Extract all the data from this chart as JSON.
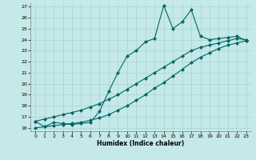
{
  "title": "",
  "xlabel": "Humidex (Indice chaleur)",
  "xlim": [
    -0.5,
    23.5
  ],
  "ylim": [
    15.7,
    27.3
  ],
  "yticks": [
    16,
    17,
    18,
    19,
    20,
    21,
    22,
    23,
    24,
    25,
    26,
    27
  ],
  "xticks": [
    0,
    1,
    2,
    3,
    4,
    5,
    6,
    7,
    8,
    9,
    10,
    11,
    12,
    13,
    14,
    15,
    16,
    17,
    18,
    19,
    20,
    21,
    22,
    23
  ],
  "bg_color": "#c5e8e8",
  "grid_color": "#a8d4d4",
  "line_color": "#006666",
  "line1_x": [
    0,
    1,
    2,
    3,
    4,
    5,
    6,
    7,
    8,
    9,
    10,
    11,
    12,
    13,
    14,
    15,
    16,
    17,
    18,
    19,
    20,
    21,
    22,
    23
  ],
  "line1_y": [
    16.6,
    16.1,
    16.5,
    16.4,
    16.3,
    16.4,
    16.5,
    17.5,
    19.3,
    21.0,
    22.5,
    23.0,
    23.8,
    24.1,
    27.1,
    25.0,
    25.6,
    26.7,
    24.3,
    24.0,
    24.1,
    24.2,
    24.3,
    23.9
  ],
  "line2_x": [
    0,
    1,
    2,
    3,
    4,
    5,
    6,
    7,
    8,
    9,
    10,
    11,
    12,
    13,
    14,
    15,
    16,
    17,
    18,
    19,
    20,
    21,
    22,
    23
  ],
  "line2_y": [
    16.6,
    16.8,
    17.0,
    17.2,
    17.4,
    17.6,
    17.9,
    18.2,
    18.6,
    19.0,
    19.5,
    20.0,
    20.5,
    21.0,
    21.5,
    22.0,
    22.5,
    23.0,
    23.3,
    23.5,
    23.7,
    23.9,
    24.1,
    24.0
  ],
  "line3_x": [
    0,
    1,
    2,
    3,
    4,
    5,
    6,
    7,
    8,
    9,
    10,
    11,
    12,
    13,
    14,
    15,
    16,
    17,
    18,
    19,
    20,
    21,
    22,
    23
  ],
  "line3_y": [
    16.0,
    16.1,
    16.2,
    16.3,
    16.4,
    16.5,
    16.7,
    16.9,
    17.2,
    17.6,
    18.0,
    18.5,
    19.0,
    19.6,
    20.1,
    20.7,
    21.3,
    21.9,
    22.4,
    22.8,
    23.2,
    23.5,
    23.7,
    23.9
  ],
  "markersize": 2.5,
  "linewidth": 0.8
}
